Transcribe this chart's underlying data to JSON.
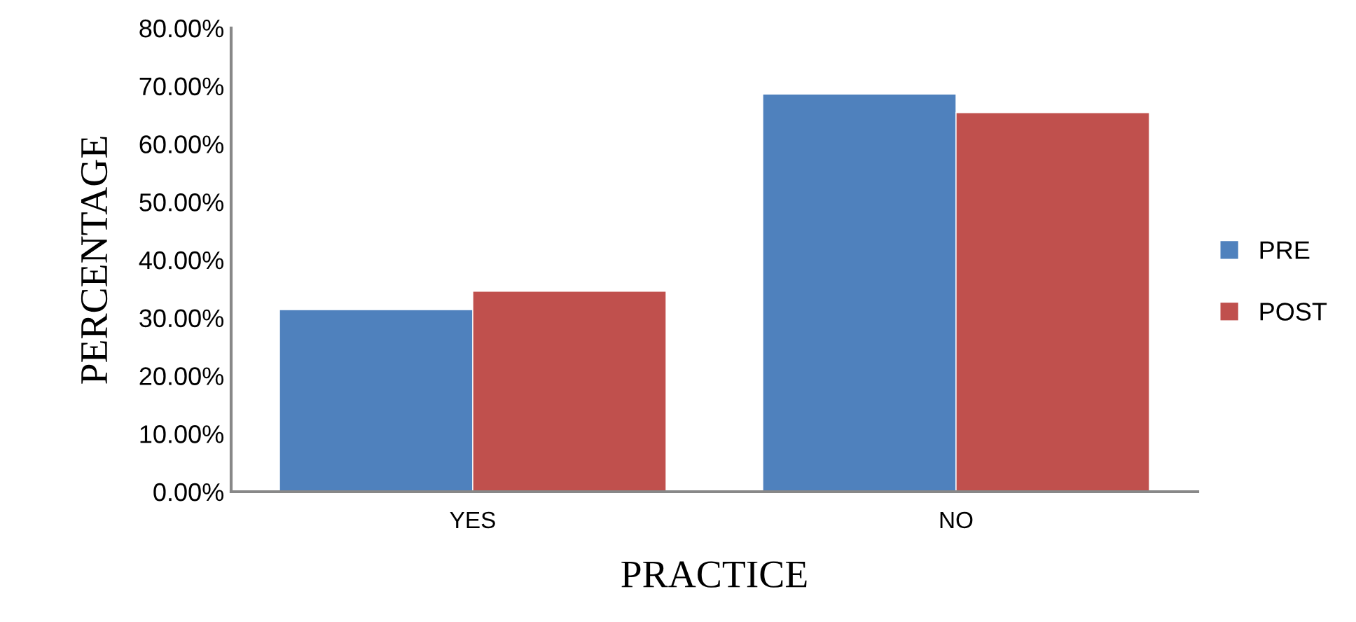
{
  "chart_data": {
    "type": "bar",
    "xlabel": "PRACTICE",
    "ylabel": "PERCENTAGE",
    "categories": [
      "YES",
      "NO"
    ],
    "series": [
      {
        "name": "PRE",
        "color": "#4f81bd",
        "values": [
          31.4,
          68.6
        ]
      },
      {
        "name": "POST",
        "color": "#c0504d",
        "values": [
          34.6,
          65.4
        ]
      }
    ],
    "ylim": [
      0,
      80
    ],
    "yticks": [
      {
        "value": 0,
        "label": "0.00%"
      },
      {
        "value": 10,
        "label": "10.00%"
      },
      {
        "value": 20,
        "label": "20.00%"
      },
      {
        "value": 30,
        "label": "30.00%"
      },
      {
        "value": 40,
        "label": "40.00%"
      },
      {
        "value": 50,
        "label": "50.00%"
      },
      {
        "value": 60,
        "label": "60.00%"
      },
      {
        "value": 70,
        "label": "70.00%"
      },
      {
        "value": 80,
        "label": "80.00%"
      }
    ],
    "grid": false,
    "legend": "right"
  }
}
